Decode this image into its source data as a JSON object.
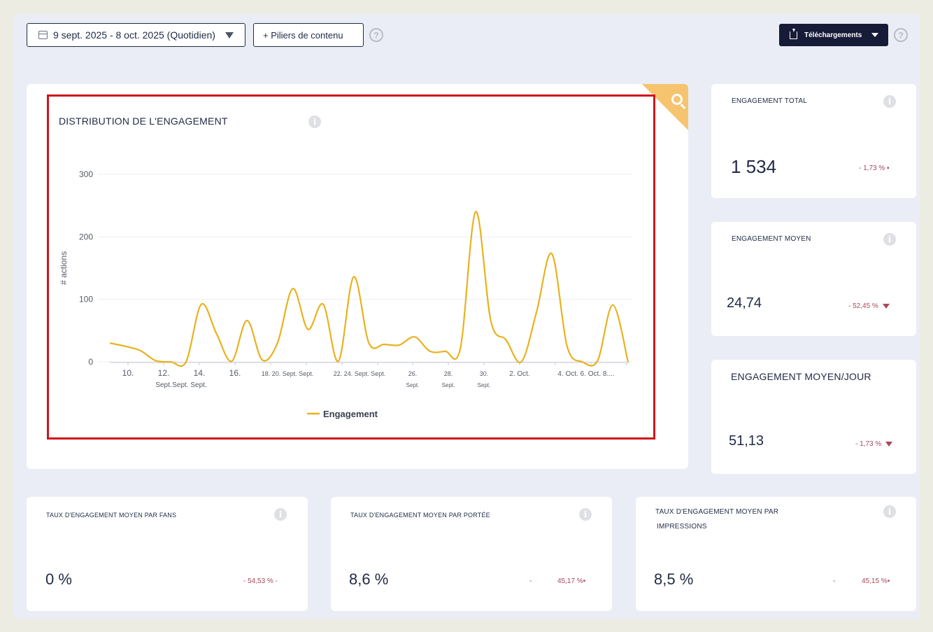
{
  "toolbar": {
    "date_range": "9 sept. 2025 - 8 oct. 2025 (Quotidien)",
    "piliers_label": "+ Piliers de contenu",
    "help_glyph": "?",
    "download_label": "Téléchargements"
  },
  "chart_card": {
    "title": "DISTRIBUTION DE L'ENGAGEMENT",
    "info_glyph": "i"
  },
  "chart_data": {
    "type": "line",
    "ylabel": "# actions",
    "ylim": [
      0,
      300
    ],
    "yticks": [
      "300",
      "200",
      "100",
      "0"
    ],
    "xtick_labels": [
      {
        "line1": "10.",
        "line2": ""
      },
      {
        "line1": "12.",
        "line2": "Sept."
      },
      {
        "line1": "14.",
        "line2": "Sept. Sept."
      },
      {
        "line1": "16.",
        "line2": ""
      },
      {
        "line1": "18. 20. Sept. Sept.",
        "line2": ""
      },
      {
        "line1": "22. 24. Sept. Sept.",
        "line2": ""
      },
      {
        "line1": "26.",
        "line2": "Sept."
      },
      {
        "line1": "28.",
        "line2": "Sept."
      },
      {
        "line1": "30.",
        "line2": "Sept."
      },
      {
        "line1": "2. Oct.",
        "line2": ""
      },
      {
        "line1": "4. Oct. 6. Oct. 8....",
        "line2": ""
      }
    ],
    "series": [
      {
        "name": "Engagement",
        "color": "#e8b21f",
        "values": [
          30,
          25,
          18,
          2,
          0,
          0,
          92,
          45,
          1,
          66,
          3,
          30,
          117,
          52,
          92,
          1,
          136,
          30,
          28,
          27,
          40,
          17,
          17,
          22,
          240,
          65,
          35,
          0,
          80,
          173,
          25,
          0,
          2,
          91,
          0
        ]
      }
    ],
    "legend": "bottom-center"
  },
  "kpis": {
    "total": {
      "label": "ENGAGEMENT TOTAL",
      "value": "1 534",
      "delta": "- 1,73 % ▪"
    },
    "moyen": {
      "label": "ENGAGEMENT MOYEN",
      "value": "24,74",
      "delta": "- 52,45 %"
    },
    "moyen_jour": {
      "label": "ENGAGEMENT MOYEN/JOUR",
      "value": "51,13",
      "delta": "- 1,73 %"
    },
    "fans": {
      "label": "TAUX D'ENGAGEMENT MOYEN PAR FANS",
      "value": "0 %",
      "delta": "- 54,53 % -"
    },
    "portee": {
      "label": "TAUX D'ENGAGEMENT MOYEN PAR PORTÉE",
      "value": "8,6 %",
      "delta_a": "-",
      "delta_b": "45,17 %▪"
    },
    "impressions": {
      "label_line1": "TAUX D'ENGAGEMENT MOYEN PAR",
      "label_line2": "IMPRESSIONS",
      "value": "8,5 %",
      "delta_a": "-",
      "delta_b": "45,15 %▪"
    }
  },
  "colors": {
    "accent": "#e8b21f",
    "negative": "#a8485a",
    "navy": "#161b38",
    "highlight": "#d0151c"
  }
}
